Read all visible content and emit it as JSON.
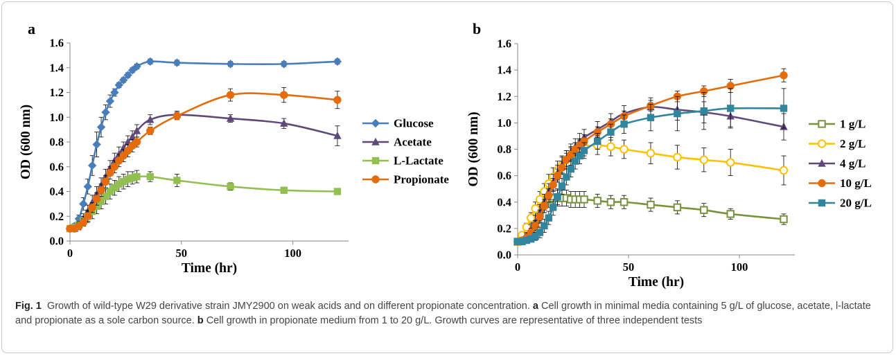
{
  "figure": {
    "caption": {
      "label": "Fig. 1",
      "text_a": "Growth of wild-type W29 derivative strain JMY2900 on weak acids and on different propionate concentration.",
      "letter_a": "a",
      "text_b": "Cell growth in minimal media containing 5 g/L of glucose, acetate, l-lactate and propionate as a sole carbon source.",
      "letter_b": "b",
      "text_c": "Cell growth in propionate medium from 1 to 20 g/L. Growth curves are representative of three independent tests"
    }
  },
  "colors": {
    "blue": "#4a7ebb",
    "purple": "#60497a",
    "green": "#92c050",
    "orange": "#e46c0a",
    "olive": "#77933c",
    "yellow": "#ffc000",
    "teal": "#31859c"
  },
  "chart_data": [
    {
      "panel": "a",
      "type": "line",
      "xlabel": "Time (hr)",
      "ylabel": "OD (600 nm)",
      "xlim": [
        0,
        125
      ],
      "ylim": [
        0,
        1.6
      ],
      "xticks": [
        0,
        50,
        100
      ],
      "yticks": [
        0.0,
        0.2,
        0.4,
        0.6,
        0.8,
        1.0,
        1.2,
        1.4,
        1.6
      ],
      "legend_position": "right",
      "series": [
        {
          "name": "Glucose",
          "color": "#4a7ebb",
          "marker": "diamond",
          "x": [
            0,
            2,
            4,
            6,
            8,
            10,
            12,
            14,
            16,
            18,
            20,
            22,
            24,
            26,
            28,
            30,
            36,
            48,
            72,
            96,
            120
          ],
          "y": [
            0.1,
            0.12,
            0.18,
            0.3,
            0.44,
            0.61,
            0.78,
            0.92,
            1.04,
            1.13,
            1.2,
            1.26,
            1.3,
            1.34,
            1.38,
            1.41,
            1.45,
            1.44,
            1.43,
            1.43,
            1.45
          ],
          "err": [
            0.01,
            0.02,
            0.03,
            0.05,
            0.06,
            0.08,
            0.1,
            0.08,
            0.06,
            0.05,
            0.03,
            0.02,
            0.02,
            0.02,
            0.02,
            0.02,
            0.02,
            0.02,
            0.02,
            0.02,
            0.02
          ]
        },
        {
          "name": "Acetate",
          "color": "#60497a",
          "marker": "triangle",
          "x": [
            0,
            2,
            4,
            6,
            8,
            10,
            12,
            14,
            16,
            18,
            20,
            22,
            24,
            26,
            28,
            30,
            36,
            48,
            72,
            96,
            120
          ],
          "y": [
            0.1,
            0.1,
            0.13,
            0.18,
            0.24,
            0.31,
            0.38,
            0.45,
            0.52,
            0.59,
            0.65,
            0.7,
            0.75,
            0.8,
            0.84,
            0.89,
            0.98,
            1.02,
            0.99,
            0.95,
            0.85
          ],
          "err": [
            0.01,
            0.02,
            0.03,
            0.04,
            0.05,
            0.06,
            0.06,
            0.06,
            0.06,
            0.06,
            0.06,
            0.06,
            0.05,
            0.05,
            0.05,
            0.05,
            0.04,
            0.03,
            0.03,
            0.04,
            0.08
          ]
        },
        {
          "name": "L-Lactate",
          "color": "#92c050",
          "marker": "square",
          "x": [
            0,
            2,
            4,
            6,
            8,
            10,
            12,
            14,
            16,
            18,
            20,
            22,
            24,
            26,
            28,
            30,
            36,
            48,
            72,
            96,
            120
          ],
          "y": [
            0.1,
            0.11,
            0.13,
            0.16,
            0.2,
            0.24,
            0.28,
            0.32,
            0.36,
            0.4,
            0.43,
            0.46,
            0.48,
            0.5,
            0.51,
            0.52,
            0.52,
            0.49,
            0.44,
            0.41,
            0.4
          ],
          "err": [
            0.01,
            0.02,
            0.03,
            0.04,
            0.05,
            0.06,
            0.06,
            0.06,
            0.06,
            0.06,
            0.06,
            0.06,
            0.06,
            0.06,
            0.05,
            0.05,
            0.04,
            0.05,
            0.03,
            0.02,
            0.02
          ]
        },
        {
          "name": "Propionate",
          "color": "#e46c0a",
          "marker": "circle",
          "x": [
            0,
            2,
            4,
            6,
            8,
            10,
            12,
            14,
            16,
            18,
            20,
            22,
            24,
            26,
            28,
            30,
            36,
            48,
            72,
            96,
            120
          ],
          "y": [
            0.1,
            0.1,
            0.12,
            0.15,
            0.2,
            0.27,
            0.34,
            0.41,
            0.48,
            0.55,
            0.6,
            0.65,
            0.69,
            0.73,
            0.77,
            0.8,
            0.89,
            1.01,
            1.18,
            1.18,
            1.14
          ],
          "err": [
            0.01,
            0.02,
            0.03,
            0.03,
            0.04,
            0.04,
            0.05,
            0.05,
            0.05,
            0.05,
            0.05,
            0.05,
            0.05,
            0.05,
            0.05,
            0.04,
            0.03,
            0.03,
            0.05,
            0.06,
            0.07
          ]
        }
      ]
    },
    {
      "panel": "b",
      "type": "line",
      "xlabel": "Time (hr)",
      "ylabel": "OD (600 nm)",
      "xlim": [
        0,
        125
      ],
      "ylim": [
        0,
        1.6
      ],
      "xticks": [
        0,
        50,
        100
      ],
      "yticks": [
        0.0,
        0.2,
        0.4,
        0.6,
        0.8,
        1.0,
        1.2,
        1.4,
        1.6
      ],
      "legend_position": "right",
      "series": [
        {
          "name": "1 g/L",
          "color": "#77933c",
          "marker": "open-square",
          "x": [
            0,
            2,
            4,
            6,
            8,
            10,
            12,
            14,
            16,
            18,
            20,
            22,
            24,
            26,
            28,
            30,
            36,
            42,
            48,
            60,
            72,
            84,
            96,
            120
          ],
          "y": [
            0.1,
            0.11,
            0.14,
            0.18,
            0.24,
            0.31,
            0.38,
            0.42,
            0.43,
            0.43,
            0.43,
            0.43,
            0.42,
            0.42,
            0.42,
            0.42,
            0.41,
            0.4,
            0.4,
            0.38,
            0.36,
            0.34,
            0.31,
            0.27
          ],
          "err": [
            0.01,
            0.02,
            0.03,
            0.04,
            0.05,
            0.06,
            0.06,
            0.06,
            0.06,
            0.06,
            0.06,
            0.06,
            0.06,
            0.06,
            0.06,
            0.06,
            0.05,
            0.05,
            0.05,
            0.05,
            0.05,
            0.05,
            0.04,
            0.04
          ]
        },
        {
          "name": "2 g/L",
          "color": "#ffc000",
          "marker": "open-circle",
          "x": [
            0,
            2,
            4,
            6,
            8,
            10,
            12,
            14,
            16,
            18,
            20,
            22,
            24,
            26,
            28,
            30,
            36,
            42,
            48,
            60,
            72,
            84,
            96,
            120
          ],
          "y": [
            0.1,
            0.15,
            0.21,
            0.28,
            0.35,
            0.42,
            0.48,
            0.54,
            0.59,
            0.64,
            0.68,
            0.72,
            0.75,
            0.78,
            0.8,
            0.82,
            0.83,
            0.82,
            0.8,
            0.77,
            0.74,
            0.72,
            0.7,
            0.64
          ],
          "err": [
            0.01,
            0.02,
            0.03,
            0.04,
            0.05,
            0.06,
            0.06,
            0.07,
            0.07,
            0.07,
            0.07,
            0.07,
            0.07,
            0.07,
            0.07,
            0.07,
            0.07,
            0.07,
            0.07,
            0.08,
            0.09,
            0.09,
            0.1,
            0.11
          ]
        },
        {
          "name": "4 g/L",
          "color": "#60497a",
          "marker": "triangle",
          "x": [
            0,
            2,
            4,
            6,
            8,
            10,
            12,
            14,
            16,
            18,
            20,
            22,
            24,
            26,
            28,
            30,
            36,
            42,
            48,
            60,
            72,
            84,
            96,
            120
          ],
          "y": [
            0.1,
            0.11,
            0.14,
            0.19,
            0.25,
            0.32,
            0.4,
            0.48,
            0.55,
            0.62,
            0.68,
            0.73,
            0.78,
            0.82,
            0.86,
            0.89,
            0.95,
            1.01,
            1.07,
            1.12,
            1.1,
            1.08,
            1.05,
            0.97
          ],
          "err": [
            0.01,
            0.02,
            0.03,
            0.04,
            0.05,
            0.06,
            0.06,
            0.06,
            0.06,
            0.06,
            0.06,
            0.06,
            0.06,
            0.06,
            0.06,
            0.06,
            0.06,
            0.06,
            0.06,
            0.07,
            0.08,
            0.08,
            0.08,
            0.1
          ]
        },
        {
          "name": "10 g/L",
          "color": "#e46c0a",
          "marker": "circle",
          "x": [
            0,
            2,
            4,
            6,
            8,
            10,
            12,
            14,
            16,
            18,
            20,
            22,
            24,
            26,
            28,
            30,
            36,
            42,
            48,
            60,
            72,
            84,
            96,
            120
          ],
          "y": [
            0.1,
            0.11,
            0.13,
            0.17,
            0.22,
            0.29,
            0.37,
            0.45,
            0.53,
            0.6,
            0.66,
            0.72,
            0.76,
            0.8,
            0.83,
            0.86,
            0.93,
            0.99,
            1.05,
            1.13,
            1.2,
            1.24,
            1.28,
            1.36
          ],
          "err": [
            0.01,
            0.02,
            0.03,
            0.03,
            0.04,
            0.05,
            0.05,
            0.05,
            0.05,
            0.05,
            0.05,
            0.05,
            0.05,
            0.05,
            0.05,
            0.05,
            0.04,
            0.04,
            0.04,
            0.04,
            0.04,
            0.04,
            0.05,
            0.05
          ]
        },
        {
          "name": "20 g/L",
          "color": "#31859c",
          "marker": "square",
          "x": [
            0,
            2,
            4,
            6,
            8,
            10,
            12,
            14,
            16,
            18,
            20,
            22,
            24,
            26,
            28,
            30,
            36,
            42,
            48,
            60,
            72,
            84,
            96,
            120
          ],
          "y": [
            0.1,
            0.1,
            0.11,
            0.12,
            0.14,
            0.17,
            0.22,
            0.28,
            0.36,
            0.44,
            0.52,
            0.59,
            0.65,
            0.71,
            0.75,
            0.79,
            0.86,
            0.93,
            0.99,
            1.04,
            1.07,
            1.09,
            1.11,
            1.11
          ],
          "err": [
            0.01,
            0.01,
            0.02,
            0.02,
            0.03,
            0.04,
            0.05,
            0.05,
            0.06,
            0.06,
            0.06,
            0.06,
            0.06,
            0.06,
            0.06,
            0.06,
            0.06,
            0.06,
            0.07,
            0.1,
            0.13,
            0.14,
            0.15,
            0.15
          ]
        }
      ]
    }
  ]
}
